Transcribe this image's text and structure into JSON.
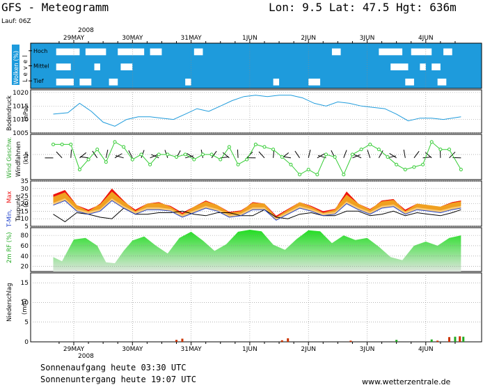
{
  "header": {
    "title": "GFS - Meteogramm",
    "location": "Lon: 9.5  Lat: 47.5  Hgt: 636m",
    "run": "Lauf: 06Z"
  },
  "year": "2008",
  "date_labels": [
    "29MAY",
    "30MAY",
    "31MAY",
    "1JUN",
    "2JUN",
    "3JUN",
    "4JUN"
  ],
  "footer": {
    "sunrise": "Sonnenaufgang heute 03:30 UTC",
    "sunset": "Sonnenuntergang heute 19:07 UTC",
    "website": "www.wetterzentrale.de"
  },
  "panel_labels": {
    "clouds_title": "Wolken (%)",
    "clouds_level": "Level",
    "cloud_levels": [
      "Hoch",
      "Mittel",
      "Tief"
    ],
    "pressure_title": "Bodendruck",
    "pressure_unit": "(hPa)",
    "wind_title": "Wind Geschw.",
    "wind_sub": "Windfahnen",
    "wind_unit": "(kt)",
    "temp_title_a": "T-Min,",
    "temp_title_b": "Max",
    "temp_sub": "Taupunkt",
    "temp_unit": "(C)",
    "rh_title": "2m RF (%)",
    "precip_title": "Niederschlag",
    "precip_unit": "(mm)"
  },
  "colors": {
    "cloud": "#1e9bdc",
    "pressure": "#1e9bdc",
    "wind": "#33cc33",
    "tmax": "#ee1111",
    "tmid": "#f0a020",
    "tlow": "#f5c878",
    "dew": "#000000",
    "rh_top": "#22dd22",
    "rh_bottom": "#dde6dd",
    "rain": "#cc3300",
    "rain2": "#22aa22"
  },
  "chart_data": [
    {
      "type": "heatmap",
      "name": "clouds",
      "levels": [
        "Hoch",
        "Mittel",
        "Tief"
      ],
      "x_days": [
        -0.35,
        6.6
      ],
      "clear_gaps": {
        "Hoch": [
          [
            -0.3,
            0.1
          ],
          [
            0.2,
            0.55
          ],
          [
            0.75,
            1.2
          ],
          [
            1.3,
            1.5
          ],
          [
            2.05,
            2.2
          ],
          [
            4.4,
            4.55
          ],
          [
            5.2,
            5.6
          ],
          [
            5.75,
            6.1
          ],
          [
            6.3,
            6.45
          ]
        ],
        "Mittel": [
          [
            -0.3,
            -0.05
          ],
          [
            0.35,
            0.45
          ],
          [
            0.8,
            1.0
          ],
          [
            5.4,
            5.7
          ],
          [
            5.9,
            6.0
          ],
          [
            6.1,
            6.25
          ]
        ],
        "Tief": [
          [
            -0.3,
            0.0
          ],
          [
            0.1,
            0.3
          ],
          [
            0.6,
            0.75
          ],
          [
            1.9,
            2.0
          ],
          [
            3.4,
            3.5
          ],
          [
            4.0,
            4.2
          ],
          [
            5.65,
            5.8
          ],
          [
            6.2,
            6.35
          ]
        ]
      }
    },
    {
      "type": "line",
      "name": "Bodendruck",
      "ylabel": "(hPa)",
      "yticks": [
        1005,
        1010,
        1015,
        1020
      ],
      "ylim": [
        1005,
        1021
      ],
      "x_days": [
        -0.35,
        -0.1,
        0.1,
        0.3,
        0.5,
        0.7,
        0.9,
        1.1,
        1.3,
        1.5,
        1.7,
        1.9,
        2.1,
        2.3,
        2.5,
        2.7,
        2.9,
        3.1,
        3.3,
        3.5,
        3.7,
        3.9,
        4.1,
        4.3,
        4.5,
        4.7,
        4.9,
        5.1,
        5.3,
        5.5,
        5.7,
        5.9,
        6.1,
        6.3,
        6.6
      ],
      "values": [
        1012,
        1012.5,
        1016,
        1013,
        1009,
        1007.5,
        1010,
        1011,
        1011,
        1010.5,
        1010,
        1012,
        1014,
        1013,
        1015,
        1017,
        1018.5,
        1019,
        1018.5,
        1019,
        1019,
        1018,
        1016,
        1015,
        1016.5,
        1016,
        1015,
        1014.5,
        1014,
        1012,
        1009.5,
        1010.5,
        1010.5,
        1010,
        1011
      ]
    },
    {
      "type": "line",
      "name": "Wind Geschw.",
      "ylabel": "(kt)",
      "yticks": [
        5
      ],
      "ylim": [
        0,
        9
      ],
      "x_days": [
        -0.35,
        -0.2,
        -0.05,
        0.1,
        0.25,
        0.4,
        0.55,
        0.7,
        0.85,
        1.0,
        1.15,
        1.3,
        1.45,
        1.6,
        1.75,
        1.9,
        2.05,
        2.2,
        2.35,
        2.5,
        2.65,
        2.8,
        2.95,
        3.1,
        3.25,
        3.4,
        3.55,
        3.7,
        3.85,
        4.0,
        4.15,
        4.3,
        4.45,
        4.6,
        4.75,
        4.9,
        5.05,
        5.2,
        5.35,
        5.5,
        5.65,
        5.8,
        5.95,
        6.1,
        6.25,
        6.4,
        6.6
      ],
      "values": [
        7,
        7,
        7,
        2,
        4,
        6,
        3.5,
        7.5,
        6.5,
        4,
        5,
        3,
        5,
        5,
        4.5,
        5,
        4,
        5,
        5,
        4,
        6.5,
        3,
        4,
        7,
        6.5,
        6,
        4.5,
        3,
        1,
        2,
        1,
        5,
        4.5,
        1,
        5,
        6,
        7,
        6,
        4.5,
        3,
        2,
        2.5,
        3,
        7.5,
        6,
        6,
        2
      ]
    },
    {
      "type": "area",
      "name": "T-Min, Max / Taupunkt",
      "ylabel": "(C)",
      "yticks": [
        5,
        10,
        15,
        20,
        25,
        30,
        35
      ],
      "ylim": [
        5,
        35
      ],
      "x_days": [
        -0.35,
        -0.15,
        0.05,
        0.25,
        0.45,
        0.65,
        0.85,
        1.05,
        1.25,
        1.45,
        1.65,
        1.85,
        2.05,
        2.25,
        2.45,
        2.65,
        2.85,
        3.05,
        3.25,
        3.45,
        3.65,
        3.85,
        4.05,
        4.25,
        4.45,
        4.65,
        4.85,
        5.05,
        5.25,
        5.45,
        5.65,
        5.85,
        6.05,
        6.25,
        6.45,
        6.6
      ],
      "tmax": [
        26,
        29,
        19,
        15,
        20,
        30,
        22,
        15,
        20,
        21,
        18,
        13,
        18,
        22,
        19,
        14,
        15,
        21,
        20,
        11,
        16,
        21,
        18,
        14,
        16,
        28,
        20,
        16,
        22,
        23,
        15,
        20,
        19,
        18,
        21,
        22
      ],
      "tmin": [
        19,
        22,
        15,
        13,
        15,
        22,
        17,
        13,
        16,
        16,
        15,
        11,
        14,
        17,
        15,
        11,
        12,
        16,
        16,
        9,
        13,
        17,
        15,
        12,
        13,
        20,
        16,
        13,
        17,
        18,
        13,
        16,
        15,
        14,
        16,
        17
      ],
      "dewpoint": [
        13,
        8,
        14,
        13,
        11,
        10,
        17,
        13,
        13,
        14,
        14,
        15,
        13,
        12,
        14,
        14,
        12,
        12,
        16,
        11,
        10,
        13,
        14,
        12,
        12,
        15,
        15,
        12,
        13,
        15,
        12,
        14,
        13,
        12,
        14,
        16
      ]
    },
    {
      "type": "area",
      "name": "2m RF",
      "ylabel": "(%)",
      "yticks": [
        20,
        40,
        60,
        80
      ],
      "ylim": [
        10,
        95
      ],
      "x_days": [
        -0.35,
        -0.2,
        0.0,
        0.2,
        0.4,
        0.55,
        0.7,
        0.85,
        1.0,
        1.2,
        1.4,
        1.6,
        1.8,
        2.0,
        2.2,
        2.4,
        2.6,
        2.8,
        3.0,
        3.2,
        3.4,
        3.6,
        3.8,
        4.0,
        4.2,
        4.4,
        4.6,
        4.8,
        5.0,
        5.2,
        5.4,
        5.6,
        5.8,
        6.0,
        6.2,
        6.4,
        6.6
      ],
      "values": [
        38,
        30,
        72,
        75,
        60,
        28,
        26,
        50,
        70,
        78,
        60,
        45,
        75,
        87,
        70,
        50,
        63,
        87,
        91,
        88,
        62,
        52,
        73,
        90,
        88,
        65,
        80,
        71,
        75,
        58,
        38,
        32,
        60,
        68,
        60,
        75,
        80
      ]
    },
    {
      "type": "bar",
      "name": "Niederschlag",
      "ylabel": "(mm)",
      "yticks": [
        0,
        5,
        10,
        15
      ],
      "ylim": [
        0,
        17.5
      ],
      "bars": [
        {
          "day": 1.75,
          "value": 0.5,
          "color": "#cc3300"
        },
        {
          "day": 1.85,
          "value": 0.8,
          "color": "#cc3300"
        },
        {
          "day": 3.55,
          "value": 0.4,
          "color": "#cc3300"
        },
        {
          "day": 3.65,
          "value": 0.9,
          "color": "#cc3300"
        },
        {
          "day": 4.72,
          "value": 0.3,
          "color": "#cc3300"
        },
        {
          "day": 5.5,
          "value": 0.5,
          "color": "#22aa22"
        },
        {
          "day": 6.1,
          "value": 0.6,
          "color": "#22aa22"
        },
        {
          "day": 6.2,
          "value": 0.3,
          "color": "#cc3300"
        },
        {
          "day": 6.4,
          "value": 1.2,
          "color": "#cc3300"
        },
        {
          "day": 6.5,
          "value": 1.3,
          "color": "#22aa22"
        },
        {
          "day": 6.58,
          "value": 1.4,
          "color": "#cc3300"
        },
        {
          "day": 6.64,
          "value": 1.3,
          "color": "#22aa22"
        }
      ]
    }
  ]
}
